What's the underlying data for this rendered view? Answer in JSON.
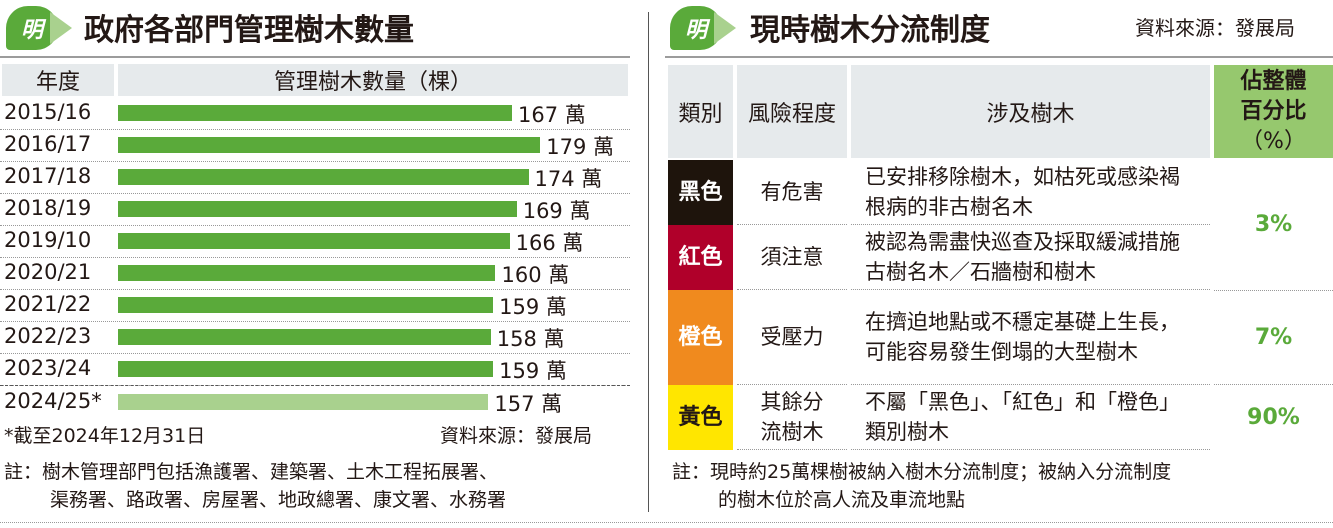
{
  "left": {
    "title": "政府各部門管理樹木數量",
    "logo": "明",
    "col_year": "年度",
    "col_count": "管理樹木數量（棵）",
    "footnote": "*截至2024年12月31日",
    "source": "資料來源：發展局",
    "note_line1": "註：樹木管理部門包括漁護署、建築署、土木工程拓展署、",
    "note_line2": "渠務署、路政署、房屋署、地政總署、康文署、水務署"
  },
  "chart_data": {
    "type": "bar",
    "orientation": "horizontal",
    "title": "政府各部門管理樹木數量",
    "xlabel": "管理樹木數量（棵）",
    "ylabel": "年度",
    "unit": "萬",
    "categories": [
      "2015/16",
      "2016/17",
      "2017/18",
      "2018/19",
      "2019/10",
      "2020/21",
      "2021/22",
      "2022/23",
      "2023/24",
      "2024/25*"
    ],
    "values": [
      167,
      179,
      174,
      169,
      166,
      160,
      159,
      158,
      159,
      157
    ],
    "labels": [
      "167 萬",
      "179 萬",
      "174 萬",
      "169 萬",
      "166 萬",
      "160 萬",
      "159 萬",
      "158 萬",
      "159 萬",
      "157 萬"
    ],
    "colors": [
      "#5aaa3a",
      "#5aaa3a",
      "#5aaa3a",
      "#5aaa3a",
      "#5aaa3a",
      "#5aaa3a",
      "#5aaa3a",
      "#5aaa3a",
      "#5aaa3a",
      "#a9d18e"
    ],
    "xlim": [
      0,
      179
    ]
  },
  "right": {
    "title": "現時樹木分流制度",
    "logo": "明",
    "source": "資料來源：發展局",
    "headers": {
      "category": "類別",
      "risk": "風險程度",
      "trees": "涉及樹木",
      "pct1": "佔整體",
      "pct2": "百分比",
      "pct3": "（%）"
    },
    "rows": [
      {
        "category": "黑色",
        "color": "#1e140c",
        "risk": "有危害",
        "trees": "已安排移除樹木，如枯死或感染褐根病的非古樹名木"
      },
      {
        "category": "紅色",
        "color": "#b0002a",
        "risk": "須注意",
        "trees": "被認為需盡快巡查及採取緩減措施古樹名木／石牆樹和樹木"
      },
      {
        "category": "橙色",
        "color": "#f08a1e",
        "risk": "受壓力",
        "trees": "在擠迫地點或不穩定基礎上生長，可能容易發生倒塌的大型樹木"
      },
      {
        "category": "黃色",
        "color": "#ffe600",
        "risk": "其餘分流樹木",
        "trees": "不屬「黑色」、「紅色」和「橙色」類別樹木"
      }
    ],
    "pct_black_red": "3%",
    "pct_orange": "7%",
    "pct_yellow": "90%",
    "note_line1": "註：現時約25萬棵樹被納入樹木分流制度；被納入分流制度",
    "note_line2": "的樹木位於高人流及車流地點"
  }
}
